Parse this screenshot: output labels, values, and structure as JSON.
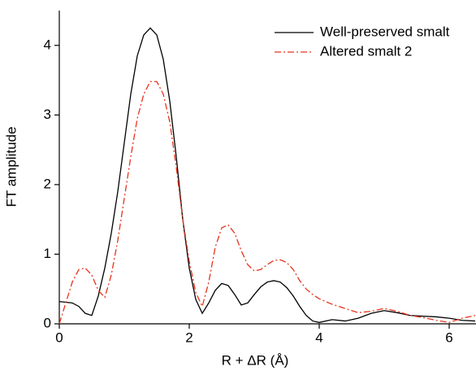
{
  "chart_data": {
    "type": "line",
    "x_label": "R + ΔR (Å)",
    "y_label": "FT amplitude",
    "x": [
      0,
      0.1,
      0.2,
      0.3,
      0.4,
      0.5,
      0.6,
      0.7,
      0.8,
      0.9,
      1.0,
      1.1,
      1.2,
      1.3,
      1.4,
      1.5,
      1.6,
      1.7,
      1.8,
      1.9,
      2.0,
      2.1,
      2.2,
      2.3,
      2.4,
      2.5,
      2.6,
      2.7,
      2.8,
      2.9,
      3.0,
      3.1,
      3.2,
      3.3,
      3.4,
      3.5,
      3.6,
      3.7,
      3.8,
      3.9,
      4.0,
      4.2,
      4.4,
      4.6,
      4.8,
      5.0,
      5.2,
      5.4,
      5.6,
      5.8,
      6.0,
      6.2,
      6.4
    ],
    "series": [
      {
        "name": "Well-preserved smalt",
        "color": "#000000",
        "dash": "solid",
        "values": [
          0.32,
          0.31,
          0.3,
          0.25,
          0.15,
          0.12,
          0.4,
          0.8,
          1.3,
          1.9,
          2.6,
          3.3,
          3.85,
          4.15,
          4.25,
          4.15,
          3.8,
          3.2,
          2.4,
          1.5,
          0.8,
          0.35,
          0.15,
          0.3,
          0.48,
          0.58,
          0.55,
          0.42,
          0.27,
          0.3,
          0.42,
          0.53,
          0.6,
          0.62,
          0.6,
          0.52,
          0.4,
          0.25,
          0.12,
          0.04,
          0.02,
          0.06,
          0.04,
          0.08,
          0.15,
          0.19,
          0.16,
          0.12,
          0.11,
          0.1,
          0.08,
          0.05,
          0.04
        ]
      },
      {
        "name": "Altered smalt 2",
        "color": "#e8331c",
        "dash": "dashdot",
        "values": [
          0,
          0.3,
          0.6,
          0.78,
          0.8,
          0.7,
          0.48,
          0.38,
          0.7,
          1.2,
          1.8,
          2.4,
          2.95,
          3.3,
          3.48,
          3.48,
          3.3,
          2.9,
          2.25,
          1.5,
          0.9,
          0.45,
          0.25,
          0.6,
          1.1,
          1.38,
          1.42,
          1.3,
          1.05,
          0.85,
          0.76,
          0.78,
          0.85,
          0.91,
          0.92,
          0.88,
          0.78,
          0.62,
          0.5,
          0.42,
          0.36,
          0.28,
          0.22,
          0.16,
          0.18,
          0.22,
          0.18,
          0.12,
          0.09,
          0.05,
          0.02,
          0.08,
          0.12
        ]
      }
    ],
    "xlim": [
      0,
      6.4
    ],
    "ylim": [
      0,
      4.5
    ],
    "xticks": [
      0,
      2,
      4,
      6
    ],
    "yticks": [
      0,
      1,
      2,
      3,
      4
    ],
    "legend": "upper right"
  }
}
